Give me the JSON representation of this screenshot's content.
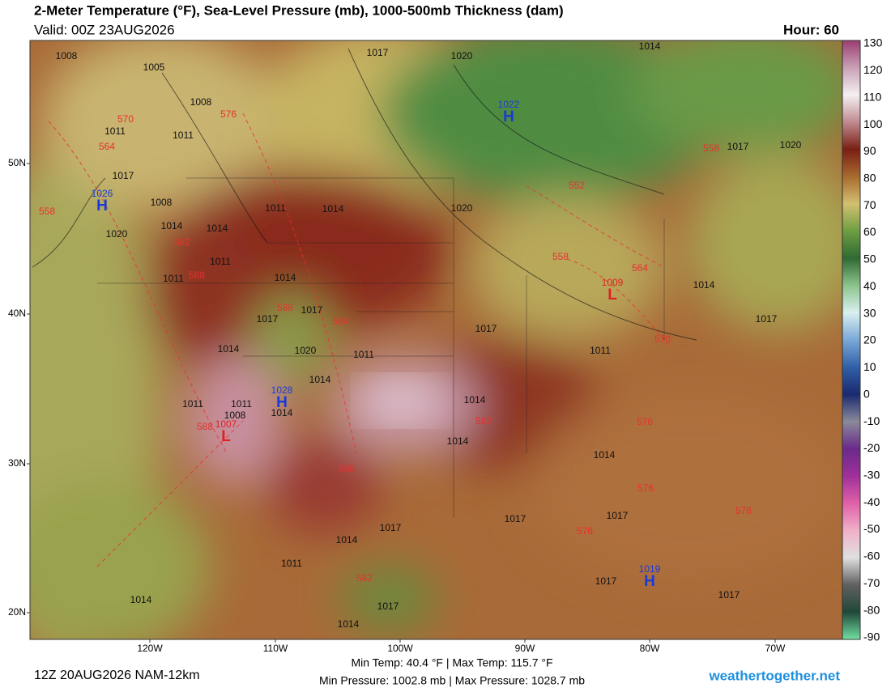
{
  "header": {
    "title": "2-Meter Temperature (°F), Sea-Level Pressure (mb), 1000-500mb Thickness (dam)",
    "valid": "Valid: 00Z 23AUG2026",
    "hour": "Hour: 60"
  },
  "colorbar": {
    "ticks": [
      130,
      120,
      110,
      100,
      90,
      80,
      70,
      60,
      50,
      40,
      30,
      20,
      10,
      0,
      -10,
      -20,
      -30,
      -40,
      -50,
      -60,
      -70,
      -80,
      -90
    ],
    "colors": [
      "#9a3d72",
      "#c9a0b5",
      "#f4f0f2",
      "#c08a90",
      "#7a1f14",
      "#a86a2e",
      "#d2c070",
      "#6e9e42",
      "#2f6a32",
      "#8cc48c",
      "#d8f0f0",
      "#7aa8d8",
      "#3060a8",
      "#1a2a70",
      "#8a8a9a",
      "#6a2a8a",
      "#a0309a",
      "#e060a8",
      "#f0b0c8",
      "#e0e0e0",
      "#606060",
      "#204838",
      "#70e0a0"
    ]
  },
  "axes": {
    "lat": [
      "50N",
      "40N",
      "30N",
      "20N"
    ],
    "lon": [
      "120W",
      "110W",
      "100W",
      "90W",
      "80W",
      "70W"
    ]
  },
  "isobars": [
    1008,
    1005,
    1008,
    1011,
    1011,
    1017,
    1008,
    1014,
    1020,
    1014,
    1011,
    1014,
    1011,
    1011,
    1014,
    1017,
    1017,
    1020,
    1014,
    1011,
    1014,
    1014,
    1014,
    1011,
    1011,
    1008,
    1014,
    1017,
    1011,
    1014,
    1017,
    1020,
    1014,
    1017,
    1020,
    1017,
    1020,
    1014,
    1017,
    1017,
    1014,
    1017,
    1011,
    1014,
    1017,
    1014,
    1017,
    1017
  ],
  "thickness": [
    570,
    576,
    564,
    558,
    582,
    588,
    588,
    594,
    582,
    588,
    588,
    576,
    576,
    576,
    582,
    570,
    564,
    558,
    552,
    558,
    576
  ],
  "centers": [
    {
      "value": 1022,
      "letter": "H"
    },
    {
      "value": 1026,
      "letter": "H"
    },
    {
      "value": 1028,
      "letter": "H"
    },
    {
      "value": 1019,
      "letter": "H"
    },
    {
      "value": 1007,
      "letter": "L"
    },
    {
      "value": 1009,
      "letter": "L"
    }
  ],
  "footer": {
    "run": "12Z 20AUG2026 NAM-12km",
    "temps": "Min Temp:  40.4 °F | Max Temp: 115.7 °F",
    "pressures": "Min Pressure: 1002.8 mb | Max Pressure: 1028.7 mb",
    "site": "weathertogether.net"
  }
}
